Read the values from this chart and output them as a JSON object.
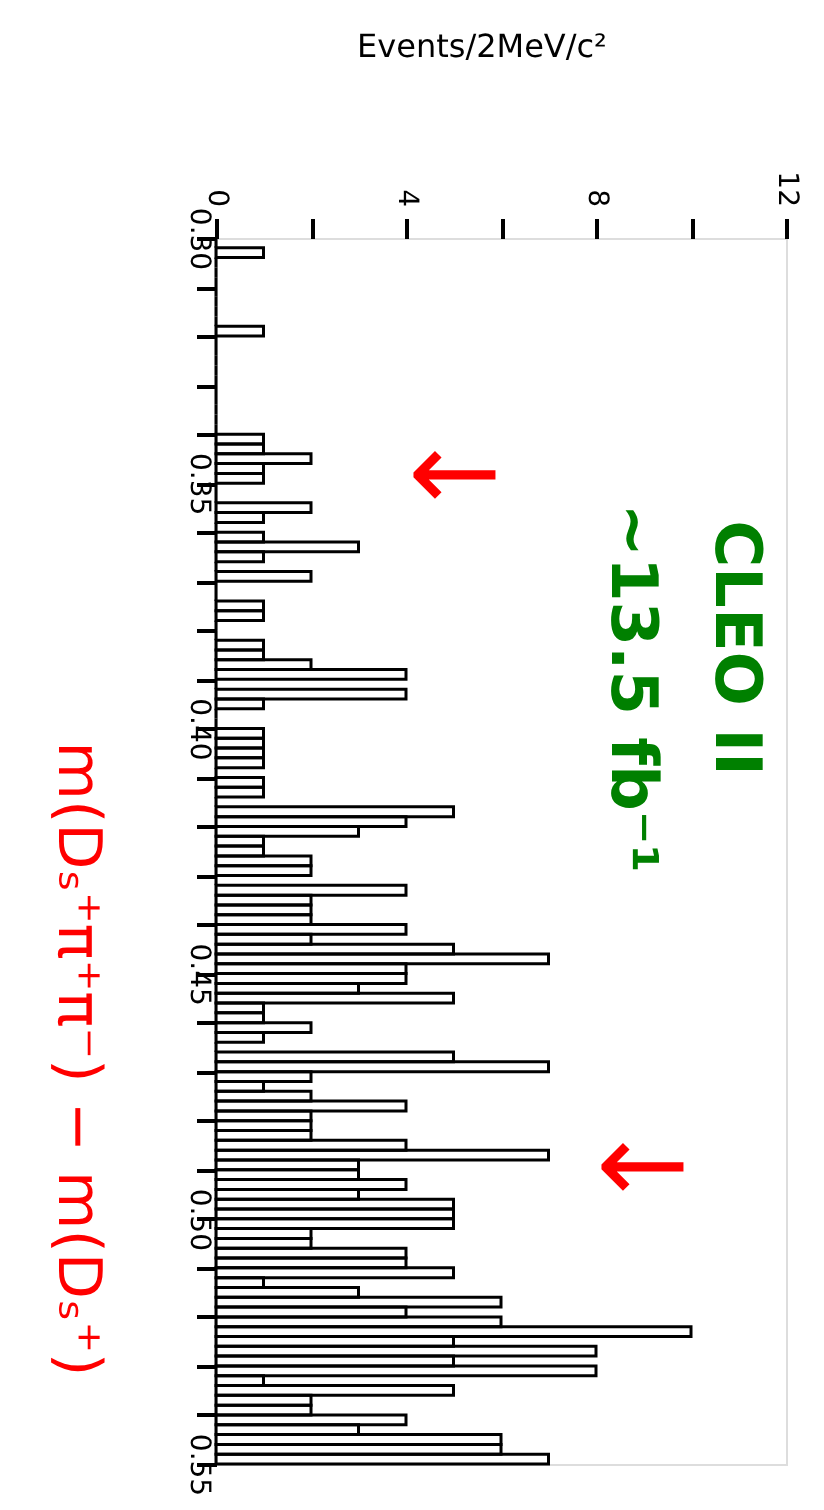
{
  "chart_data": {
    "type": "histogram",
    "orientation": "horizontal",
    "xlabel": "Events/2MeV/c²",
    "ylabel": "m(Dₛ⁺π⁺π⁻) − m(Dₛ⁺)",
    "bins": [
      0.3,
      0.302,
      0.304,
      0.306,
      0.308,
      0.31,
      0.312,
      0.314,
      0.316,
      0.318,
      0.32,
      0.322,
      0.324,
      0.326,
      0.328,
      0.33,
      0.332,
      0.334,
      0.336,
      0.338,
      0.34,
      0.342,
      0.344,
      0.346,
      0.348,
      0.35,
      0.352,
      0.354,
      0.356,
      0.358,
      0.36,
      0.362,
      0.364,
      0.366,
      0.368,
      0.37,
      0.372,
      0.374,
      0.376,
      0.378,
      0.38,
      0.382,
      0.384,
      0.386,
      0.388,
      0.39,
      0.392,
      0.394,
      0.396,
      0.398,
      0.4,
      0.402,
      0.404,
      0.406,
      0.408,
      0.41,
      0.412,
      0.414,
      0.416,
      0.418,
      0.42,
      0.422,
      0.424,
      0.426,
      0.428,
      0.43,
      0.432,
      0.434,
      0.436,
      0.438,
      0.44,
      0.442,
      0.444,
      0.446,
      0.448,
      0.45,
      0.452,
      0.454,
      0.456,
      0.458,
      0.46,
      0.462,
      0.464,
      0.466,
      0.468,
      0.47,
      0.472,
      0.474,
      0.476,
      0.478,
      0.48,
      0.482,
      0.484,
      0.486,
      0.488,
      0.49,
      0.492,
      0.494,
      0.496,
      0.498,
      0.5,
      0.502,
      0.504,
      0.506,
      0.508,
      0.51,
      0.512,
      0.514,
      0.516,
      0.518,
      0.52,
      0.522,
      0.524,
      0.526,
      0.528,
      0.53,
      0.532,
      0.534,
      0.536,
      0.538,
      0.54,
      0.542,
      0.544,
      0.546,
      0.548,
      0.55
    ],
    "values": [
      0,
      1,
      0,
      0,
      0,
      0,
      0,
      0,
      0,
      1,
      0,
      0,
      0,
      0,
      0,
      0,
      0,
      0,
      0,
      0,
      1,
      1,
      2,
      1,
      1,
      0,
      0,
      2,
      1,
      0,
      1,
      3,
      1,
      0,
      2,
      0,
      0,
      1,
      1,
      0,
      0,
      1,
      1,
      2,
      4,
      0,
      4,
      1,
      0,
      0,
      1,
      1,
      1,
      1,
      0,
      1,
      1,
      0,
      5,
      4,
      3,
      1,
      1,
      2,
      2,
      0,
      4,
      2,
      2,
      2,
      4,
      2,
      5,
      7,
      4,
      4,
      3,
      5,
      1,
      1,
      2,
      1,
      0,
      5,
      7,
      2,
      1,
      2,
      4,
      2,
      2,
      2,
      4,
      7,
      3,
      3,
      4,
      3,
      5,
      5,
      5,
      2,
      2,
      4,
      4,
      5,
      1,
      3,
      6,
      4,
      6,
      10,
      5,
      8,
      5,
      8,
      1,
      5,
      2,
      2,
      4,
      3,
      6,
      6,
      7
    ],
    "color": "#000000",
    "ylim": [
      0.55,
      0.3
    ],
    "yticks": [
      {
        "value": 0.3,
        "label": "0.30"
      },
      {
        "value": 0.31,
        "label": null
      },
      {
        "value": 0.32,
        "label": null
      },
      {
        "value": 0.33,
        "label": null
      },
      {
        "value": 0.34,
        "label": null
      },
      {
        "value": 0.35,
        "label": "0.35"
      },
      {
        "value": 0.36,
        "label": null
      },
      {
        "value": 0.37,
        "label": null
      },
      {
        "value": 0.38,
        "label": null
      },
      {
        "value": 0.39,
        "label": null
      },
      {
        "value": 0.4,
        "label": "0.40"
      },
      {
        "value": 0.41,
        "label": null
      },
      {
        "value": 0.42,
        "label": null
      },
      {
        "value": 0.43,
        "label": null
      },
      {
        "value": 0.44,
        "label": null
      },
      {
        "value": 0.45,
        "label": "0.45"
      },
      {
        "value": 0.46,
        "label": null
      },
      {
        "value": 0.47,
        "label": null
      },
      {
        "value": 0.48,
        "label": null
      },
      {
        "value": 0.49,
        "label": null
      },
      {
        "value": 0.5,
        "label": "0.50"
      },
      {
        "value": 0.51,
        "label": null
      },
      {
        "value": 0.52,
        "label": null
      },
      {
        "value": 0.53,
        "label": null
      },
      {
        "value": 0.54,
        "label": null
      },
      {
        "value": 0.55,
        "label": "0.55"
      }
    ],
    "xlim": [
      0,
      12
    ],
    "xticks": [
      0,
      {
        "value": 2,
        "label": null
      },
      4,
      {
        "value": 6,
        "label": null
      },
      8,
      {
        "value": 10,
        "label": null
      },
      12
    ],
    "annotations": [
      "CLEO II",
      "~13.5 fb⁻¹",
      "←",
      "←"
    ],
    "grid": false
  }
}
